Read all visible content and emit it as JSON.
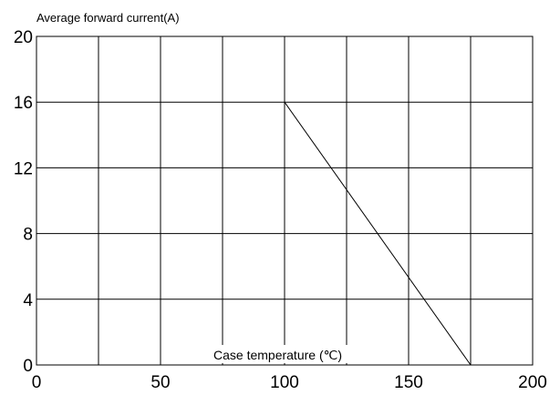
{
  "chart_data": {
    "type": "line",
    "ylabel": "Average forward current(A)",
    "xlabel": "Case temperature (℃)",
    "xlim": [
      0,
      200
    ],
    "ylim": [
      0,
      20
    ],
    "x_ticks": [
      0,
      50,
      100,
      150,
      200
    ],
    "y_ticks": [
      0,
      4,
      8,
      12,
      16,
      20
    ],
    "x_grid": [
      0,
      25,
      50,
      75,
      100,
      125,
      150,
      175,
      200
    ],
    "y_grid": [
      0,
      4,
      8,
      12,
      16,
      20
    ],
    "grid": true,
    "series": [
      {
        "x": [
          100,
          175
        ],
        "y": [
          16,
          0
        ]
      }
    ]
  }
}
